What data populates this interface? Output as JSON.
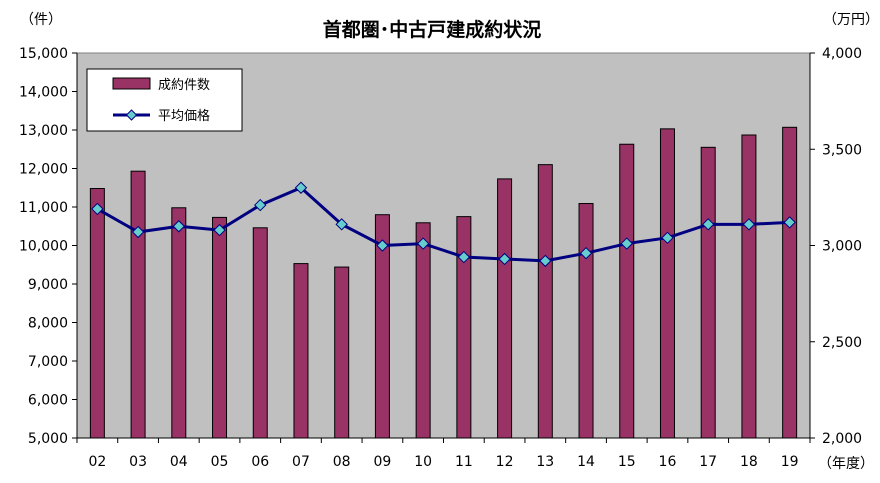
{
  "chart_data": {
    "type": "bar+line",
    "title": "首都圏･中古戸建成約状況",
    "categories": [
      "02",
      "03",
      "04",
      "05",
      "06",
      "07",
      "08",
      "09",
      "10",
      "11",
      "12",
      "13",
      "14",
      "15",
      "16",
      "17",
      "18",
      "19"
    ],
    "x_unit_label": "（年度）",
    "y_left": {
      "unit_label": "（件）",
      "range": [
        5000,
        15000
      ],
      "ticks": [
        5000,
        6000,
        7000,
        8000,
        9000,
        10000,
        11000,
        12000,
        13000,
        14000,
        15000
      ],
      "tick_labels": [
        "5,000",
        "6,000",
        "7,000",
        "8,000",
        "9,000",
        "10,000",
        "11,000",
        "12,000",
        "13,000",
        "14,000",
        "15,000"
      ]
    },
    "y_right": {
      "unit_label": "（万円）",
      "range": [
        2000,
        4000
      ],
      "ticks": [
        2000,
        2500,
        3000,
        3500,
        4000
      ],
      "tick_labels": [
        "2,000",
        "2,500",
        "3,000",
        "3,500",
        "4,000"
      ]
    },
    "series": [
      {
        "name": "成約件数",
        "type": "bar",
        "axis": "left",
        "color": "#993366",
        "values": [
          11480,
          11930,
          10980,
          10730,
          10460,
          9530,
          9440,
          10800,
          10590,
          10750,
          11730,
          12100,
          11090,
          12630,
          13030,
          12550,
          12870,
          13070
        ]
      },
      {
        "name": "平均価格",
        "type": "line",
        "axis": "right",
        "color": "#000080",
        "marker_color": "#66CCCC",
        "values": [
          3190,
          3070,
          3100,
          3080,
          3210,
          3300,
          3110,
          3000,
          3010,
          2940,
          2930,
          2920,
          2960,
          3010,
          3040,
          3110,
          3110,
          3120
        ]
      }
    ],
    "legend": {
      "position": "top-left"
    },
    "grid": false,
    "plot_background": "#C0C0C0"
  }
}
